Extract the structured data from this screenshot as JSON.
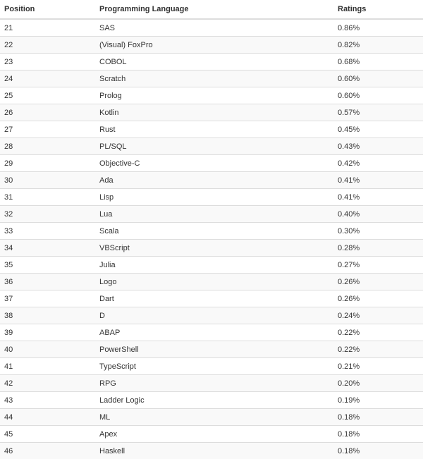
{
  "table": {
    "header": [
      "Position",
      "Programming Language",
      "Ratings"
    ],
    "rows": [
      [
        "21",
        "SAS",
        "0.86%"
      ],
      [
        "22",
        "(Visual) FoxPro",
        "0.82%"
      ],
      [
        "23",
        "COBOL",
        "0.68%"
      ],
      [
        "24",
        "Scratch",
        "0.60%"
      ],
      [
        "25",
        "Prolog",
        "0.60%"
      ],
      [
        "26",
        "Kotlin",
        "0.57%"
      ],
      [
        "27",
        "Rust",
        "0.45%"
      ],
      [
        "28",
        "PL/SQL",
        "0.43%"
      ],
      [
        "29",
        "Objective-C",
        "0.42%"
      ],
      [
        "30",
        "Ada",
        "0.41%"
      ],
      [
        "31",
        "Lisp",
        "0.41%"
      ],
      [
        "32",
        "Lua",
        "0.40%"
      ],
      [
        "33",
        "Scala",
        "0.30%"
      ],
      [
        "34",
        "VBScript",
        "0.28%"
      ],
      [
        "35",
        "Julia",
        "0.27%"
      ],
      [
        "36",
        "Logo",
        "0.26%"
      ],
      [
        "37",
        "Dart",
        "0.26%"
      ],
      [
        "38",
        "D",
        "0.24%"
      ],
      [
        "39",
        "ABAP",
        "0.22%"
      ],
      [
        "40",
        "PowerShell",
        "0.22%"
      ],
      [
        "41",
        "TypeScript",
        "0.21%"
      ],
      [
        "42",
        "RPG",
        "0.20%"
      ],
      [
        "43",
        "Ladder Logic",
        "0.19%"
      ],
      [
        "44",
        "ML",
        "0.18%"
      ],
      [
        "45",
        "Apex",
        "0.18%"
      ],
      [
        "46",
        "Haskell",
        "0.18%"
      ]
    ]
  }
}
